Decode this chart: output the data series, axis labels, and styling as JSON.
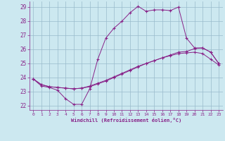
{
  "xlabel": "Windchill (Refroidissement éolien,°C)",
  "bg_color": "#cce8f0",
  "line_color": "#882288",
  "grid_color": "#99bbcc",
  "xlim": [
    -0.5,
    23.5
  ],
  "ylim": [
    21.7,
    29.4
  ],
  "yticks": [
    22,
    23,
    24,
    25,
    26,
    27,
    28,
    29
  ],
  "xticks": [
    0,
    1,
    2,
    3,
    4,
    5,
    6,
    7,
    8,
    9,
    10,
    11,
    12,
    13,
    14,
    15,
    16,
    17,
    18,
    19,
    20,
    21,
    22,
    23
  ],
  "series1_x": [
    0,
    1,
    2,
    3,
    4,
    5,
    6,
    7,
    8,
    9,
    10,
    11,
    12,
    13,
    14,
    15,
    16,
    17,
    18,
    19,
    20,
    21,
    22,
    23
  ],
  "series1_y": [
    23.9,
    23.4,
    23.3,
    23.1,
    22.5,
    22.1,
    22.1,
    23.2,
    25.3,
    26.8,
    27.5,
    28.0,
    28.6,
    29.05,
    28.7,
    28.8,
    28.8,
    28.75,
    29.0,
    26.8,
    26.1,
    26.1,
    25.8,
    25.0
  ],
  "series2_x": [
    0,
    1,
    2,
    3,
    4,
    5,
    6,
    7,
    8,
    9,
    10,
    11,
    12,
    13,
    14,
    15,
    16,
    17,
    18,
    19,
    20,
    21,
    22,
    23
  ],
  "series2_y": [
    23.9,
    23.5,
    23.35,
    23.3,
    23.25,
    23.2,
    23.25,
    23.35,
    23.55,
    23.75,
    24.0,
    24.25,
    24.5,
    24.75,
    25.0,
    25.2,
    25.4,
    25.6,
    25.8,
    25.85,
    26.05,
    26.1,
    25.8,
    25.0
  ],
  "series3_x": [
    0,
    1,
    2,
    3,
    4,
    5,
    6,
    7,
    8,
    9,
    10,
    11,
    12,
    13,
    14,
    15,
    16,
    17,
    18,
    19,
    20,
    21,
    22,
    23
  ],
  "series3_y": [
    23.9,
    23.5,
    23.35,
    23.3,
    23.25,
    23.2,
    23.25,
    23.4,
    23.6,
    23.8,
    24.05,
    24.3,
    24.55,
    24.8,
    25.0,
    25.2,
    25.4,
    25.55,
    25.7,
    25.75,
    25.8,
    25.7,
    25.3,
    24.9
  ]
}
